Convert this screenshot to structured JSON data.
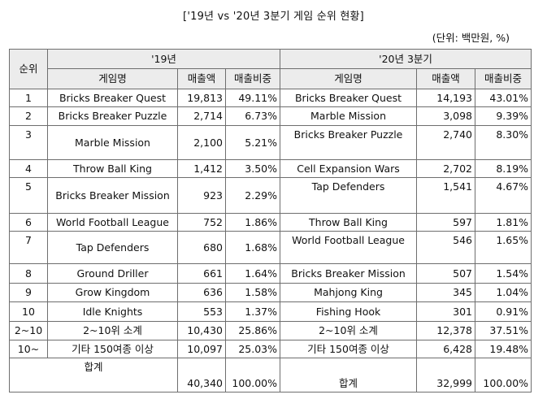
{
  "title": "['19년 vs '20년 3분기 게임 순위 현황]",
  "unit": "(단위: 백만원, %)",
  "headers": {
    "rank": "순위",
    "y19": "'19년",
    "y20": "'20년 3분기",
    "game": "게임명",
    "sales": "매출액",
    "share": "매출비중"
  },
  "rows": [
    {
      "rank": "1",
      "g19": "Bricks Breaker Quest",
      "s19": "19,813",
      "p19": "49.11%",
      "g20": "Bricks Breaker Quest",
      "s20": "14,193",
      "p20": "43.01%"
    },
    {
      "rank": "2",
      "g19": "Bricks Breaker Puzzle",
      "s19": "2,714",
      "p19": "6.73%",
      "g20": "Marble Mission",
      "s20": "3,098",
      "p20": "9.39%"
    },
    {
      "rank": "3",
      "g19": "Marble Mission",
      "s19": "2,100",
      "p19": "5.21%",
      "g20": "Bricks Breaker Puzzle",
      "s20": "2,740",
      "p20": "8.30%"
    },
    {
      "rank": "4",
      "g19": "Throw Ball King",
      "s19": "1,412",
      "p19": "3.50%",
      "g20": "Cell Expansion Wars",
      "s20": "2,702",
      "p20": "8.19%"
    },
    {
      "rank": "5",
      "g19": "Bricks Breaker Mission",
      "s19": "923",
      "p19": "2.29%",
      "g20": "Tap Defenders",
      "s20": "1,541",
      "p20": "4.67%"
    },
    {
      "rank": "6",
      "g19": "World Football League",
      "s19": "752",
      "p19": "1.86%",
      "g20": "Throw Ball King",
      "s20": "597",
      "p20": "1.81%"
    },
    {
      "rank": "7",
      "g19": "Tap Defenders",
      "s19": "680",
      "p19": "1.68%",
      "g20": "World Football League",
      "s20": "546",
      "p20": "1.65%"
    },
    {
      "rank": "8",
      "g19": "Ground Driller",
      "s19": "661",
      "p19": "1.64%",
      "g20": "Bricks Breaker Mission",
      "s20": "507",
      "p20": "1.54%"
    },
    {
      "rank": "9",
      "g19": "Grow Kingdom",
      "s19": "636",
      "p19": "1.58%",
      "g20": "Mahjong King",
      "s20": "345",
      "p20": "1.04%"
    },
    {
      "rank": "10",
      "g19": "Idle Knights",
      "s19": "553",
      "p19": "1.37%",
      "g20": "Fishing Hook",
      "s20": "301",
      "p20": "0.91%"
    },
    {
      "rank": "2~10",
      "g19": "2~10위 소계",
      "s19": "10,430",
      "p19": "25.86%",
      "g20": "2~10위 소계",
      "s20": "12,378",
      "p20": "37.51%"
    },
    {
      "rank": "10~",
      "g19": "기타 150여종 이상",
      "s19": "10,097",
      "p19": "25.03%",
      "g20": "기타 150여종 이상",
      "s20": "6,428",
      "p20": "19.48%"
    }
  ],
  "total": {
    "label19": "합계",
    "s19": "40,340",
    "p19": "100.00%",
    "label20": "합계",
    "s20": "32,999",
    "p20": "100.00%"
  }
}
